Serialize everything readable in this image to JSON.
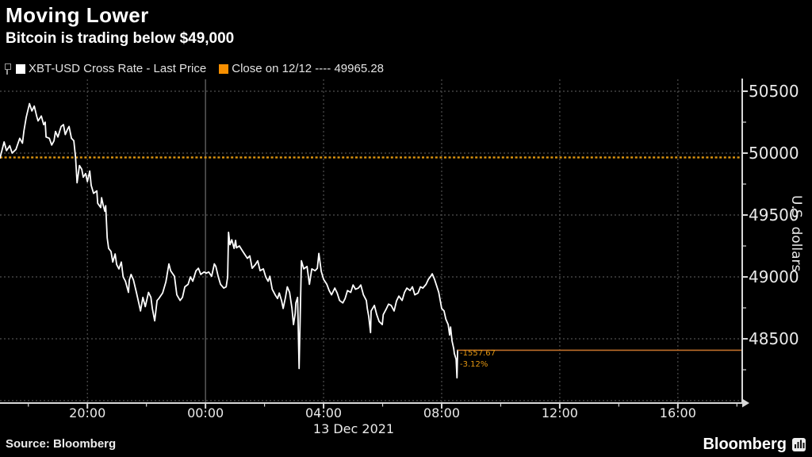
{
  "header": {
    "title": "Moving Lower",
    "subtitle": "Bitcoin is trading below $49,000"
  },
  "legend": [
    {
      "label": "XBT-USD Cross Rate - Last Price",
      "marker_color": "#ffffff"
    },
    {
      "label": "Close on 12/12 ---- 49965.28",
      "marker_color": "#f78f00"
    }
  ],
  "footer": {
    "source": "Source: Bloomberg",
    "brand": "Bloomberg"
  },
  "colors": {
    "background": "#000000",
    "series": "#ffffff",
    "grid_dotted": "#4f4f4f",
    "grid_solid": "#707070",
    "axis": "#d8d8d8",
    "close_line": "#dc940f",
    "last_price_line": "#bf6f2b",
    "annotation": "#e59711"
  },
  "chart_data": {
    "type": "line",
    "title": "Moving Lower",
    "subtitle": "Bitcoin is trading below $49,000",
    "xlabel": "",
    "ylabel": "U.S. dollars",
    "legend_position": "top-left",
    "grid": "dotted",
    "x_axis": {
      "date_label": "13 Dec 2021",
      "unit": "hours relative to 13 Dec 2021 00:00",
      "domain_t": [
        -6.96,
        18.18
      ],
      "major_ticks": [
        {
          "t": -4,
          "label": "20:00"
        },
        {
          "t": 0,
          "label": "00:00"
        },
        {
          "t": 4,
          "label": "04:00"
        },
        {
          "t": 8,
          "label": "08:00"
        },
        {
          "t": 12,
          "label": "12:00"
        },
        {
          "t": 16,
          "label": "16:00"
        }
      ],
      "minor_ticks_t": [
        -6,
        -2,
        2,
        6,
        10,
        14,
        18
      ],
      "solid_gridline_t": 0
    },
    "y_axis": {
      "domain": [
        47981,
        50596
      ],
      "major_ticks": [
        50500,
        50000,
        49500,
        49000,
        48500
      ],
      "minor_ticks": [
        50250,
        49750,
        49250,
        48750,
        48250
      ],
      "gridline_values": [
        50500,
        50000,
        49500,
        49000,
        48500,
        48000
      ]
    },
    "close_line": {
      "label": "Close on 12/12",
      "value": 49965.28
    },
    "last_price": {
      "value": 48407.61,
      "change": "-1557.67",
      "pct_change": "-3.12%"
    },
    "series": [
      {
        "name": "XBT-USD Cross Rate - Last Price",
        "color": "#ffffff",
        "points": [
          [
            -6.96,
            49960
          ],
          [
            -6.82,
            50090
          ],
          [
            -6.74,
            50020
          ],
          [
            -6.63,
            50060
          ],
          [
            -6.55,
            50000
          ],
          [
            -6.42,
            50030
          ],
          [
            -6.29,
            50120
          ],
          [
            -6.2,
            50080
          ],
          [
            -6.15,
            50180
          ],
          [
            -6.07,
            50290
          ],
          [
            -5.96,
            50400
          ],
          [
            -5.88,
            50340
          ],
          [
            -5.8,
            50380
          ],
          [
            -5.72,
            50300
          ],
          [
            -5.67,
            50260
          ],
          [
            -5.56,
            50300
          ],
          [
            -5.48,
            50230
          ],
          [
            -5.43,
            50250
          ],
          [
            -5.4,
            50130
          ],
          [
            -5.29,
            50120
          ],
          [
            -5.21,
            50065
          ],
          [
            -5.13,
            50100
          ],
          [
            -5.08,
            50175
          ],
          [
            -5.0,
            50130
          ],
          [
            -4.89,
            50215
          ],
          [
            -4.81,
            50230
          ],
          [
            -4.75,
            50150
          ],
          [
            -4.67,
            50195
          ],
          [
            -4.62,
            50215
          ],
          [
            -4.54,
            50120
          ],
          [
            -4.46,
            50100
          ],
          [
            -4.4,
            49965
          ],
          [
            -4.35,
            49760
          ],
          [
            -4.27,
            49900
          ],
          [
            -4.19,
            49870
          ],
          [
            -4.14,
            49805
          ],
          [
            -4.06,
            49835
          ],
          [
            -4.0,
            49770
          ],
          [
            -3.92,
            49855
          ],
          [
            -3.87,
            49740
          ],
          [
            -3.79,
            49675
          ],
          [
            -3.68,
            49695
          ],
          [
            -3.65,
            49595
          ],
          [
            -3.55,
            49560
          ],
          [
            -3.52,
            49640
          ],
          [
            -3.46,
            49575
          ],
          [
            -3.41,
            49530
          ],
          [
            -3.38,
            49575
          ],
          [
            -3.33,
            49315
          ],
          [
            -3.28,
            49230
          ],
          [
            -3.2,
            49205
          ],
          [
            -3.14,
            49120
          ],
          [
            -3.06,
            49185
          ],
          [
            -3.01,
            49100
          ],
          [
            -2.93,
            49065
          ],
          [
            -2.85,
            49120
          ],
          [
            -2.79,
            49000
          ],
          [
            -2.71,
            48965
          ],
          [
            -2.61,
            48875
          ],
          [
            -2.58,
            48975
          ],
          [
            -2.52,
            49020
          ],
          [
            -2.44,
            48975
          ],
          [
            -2.34,
            48875
          ],
          [
            -2.26,
            48790
          ],
          [
            -2.2,
            48725
          ],
          [
            -2.12,
            48835
          ],
          [
            -2.04,
            48760
          ],
          [
            -1.93,
            48875
          ],
          [
            -1.85,
            48835
          ],
          [
            -1.8,
            48745
          ],
          [
            -1.72,
            48645
          ],
          [
            -1.64,
            48810
          ],
          [
            -1.58,
            48825
          ],
          [
            -1.45,
            48870
          ],
          [
            -1.34,
            48960
          ],
          [
            -1.24,
            49105
          ],
          [
            -1.18,
            49050
          ],
          [
            -1.05,
            49005
          ],
          [
            -0.97,
            48855
          ],
          [
            -0.86,
            48810
          ],
          [
            -0.78,
            48835
          ],
          [
            -0.7,
            48920
          ],
          [
            -0.59,
            48940
          ],
          [
            -0.51,
            49000
          ],
          [
            -0.43,
            48965
          ],
          [
            -0.32,
            49050
          ],
          [
            -0.24,
            49070
          ],
          [
            -0.16,
            49020
          ],
          [
            -0.05,
            49040
          ],
          [
            0.03,
            49030
          ],
          [
            0.11,
            49040
          ],
          [
            0.21,
            49005
          ],
          [
            0.3,
            49105
          ],
          [
            0.35,
            49085
          ],
          [
            0.43,
            49005
          ],
          [
            0.51,
            48940
          ],
          [
            0.62,
            48910
          ],
          [
            0.7,
            48920
          ],
          [
            0.75,
            49000
          ],
          [
            0.78,
            49360
          ],
          [
            0.83,
            49260
          ],
          [
            0.89,
            49300
          ],
          [
            0.97,
            49230
          ],
          [
            1.02,
            49295
          ],
          [
            1.05,
            49235
          ],
          [
            1.15,
            49250
          ],
          [
            1.24,
            49215
          ],
          [
            1.32,
            49185
          ],
          [
            1.42,
            49150
          ],
          [
            1.5,
            49170
          ],
          [
            1.58,
            49070
          ],
          [
            1.69,
            49100
          ],
          [
            1.77,
            49130
          ],
          [
            1.85,
            49050
          ],
          [
            1.96,
            49065
          ],
          [
            2.04,
            49000
          ],
          [
            2.12,
            48965
          ],
          [
            2.18,
            49005
          ],
          [
            2.26,
            48900
          ],
          [
            2.36,
            48855
          ],
          [
            2.44,
            48825
          ],
          [
            2.5,
            48870
          ],
          [
            2.58,
            48805
          ],
          [
            2.63,
            48745
          ],
          [
            2.71,
            48835
          ],
          [
            2.77,
            48920
          ],
          [
            2.85,
            48875
          ],
          [
            2.93,
            48745
          ],
          [
            2.98,
            48615
          ],
          [
            3.04,
            48705
          ],
          [
            3.06,
            48790
          ],
          [
            3.12,
            48835
          ],
          [
            3.17,
            48260
          ],
          [
            3.25,
            49130
          ],
          [
            3.33,
            49065
          ],
          [
            3.44,
            49085
          ],
          [
            3.52,
            48940
          ],
          [
            3.6,
            49065
          ],
          [
            3.71,
            49050
          ],
          [
            3.79,
            49070
          ],
          [
            3.84,
            49190
          ],
          [
            3.92,
            49045
          ],
          [
            4.0,
            48980
          ],
          [
            4.11,
            48940
          ],
          [
            4.19,
            48890
          ],
          [
            4.27,
            48855
          ],
          [
            4.38,
            48910
          ],
          [
            4.46,
            48870
          ],
          [
            4.54,
            48810
          ],
          [
            4.65,
            48790
          ],
          [
            4.73,
            48825
          ],
          [
            4.81,
            48890
          ],
          [
            4.92,
            48875
          ],
          [
            5.0,
            48935
          ],
          [
            5.08,
            48900
          ],
          [
            5.18,
            48910
          ],
          [
            5.26,
            48935
          ],
          [
            5.35,
            48855
          ],
          [
            5.45,
            48810
          ],
          [
            5.48,
            48745
          ],
          [
            5.53,
            48680
          ],
          [
            5.59,
            48550
          ],
          [
            5.61,
            48725
          ],
          [
            5.72,
            48770
          ],
          [
            5.8,
            48695
          ],
          [
            5.88,
            48640
          ],
          [
            5.99,
            48615
          ],
          [
            6.02,
            48695
          ],
          [
            6.12,
            48740
          ],
          [
            6.2,
            48780
          ],
          [
            6.29,
            48770
          ],
          [
            6.39,
            48725
          ],
          [
            6.47,
            48805
          ],
          [
            6.55,
            48845
          ],
          [
            6.66,
            48810
          ],
          [
            6.74,
            48875
          ],
          [
            6.82,
            48910
          ],
          [
            6.93,
            48890
          ],
          [
            7.01,
            48920
          ],
          [
            7.09,
            48855
          ],
          [
            7.2,
            48870
          ],
          [
            7.28,
            48920
          ],
          [
            7.36,
            48910
          ],
          [
            7.47,
            48940
          ],
          [
            7.55,
            48980
          ],
          [
            7.63,
            49005
          ],
          [
            7.68,
            49025
          ],
          [
            7.76,
            48980
          ],
          [
            7.82,
            48935
          ],
          [
            7.9,
            48875
          ],
          [
            8.0,
            48745
          ],
          [
            8.08,
            48725
          ],
          [
            8.14,
            48660
          ],
          [
            8.22,
            48615
          ],
          [
            8.27,
            48530
          ],
          [
            8.3,
            48595
          ],
          [
            8.35,
            48485
          ],
          [
            8.41,
            48420
          ],
          [
            8.43,
            48380
          ],
          [
            8.49,
            48335
          ],
          [
            8.52,
            48185
          ],
          [
            8.54,
            48407.61
          ]
        ]
      }
    ]
  }
}
